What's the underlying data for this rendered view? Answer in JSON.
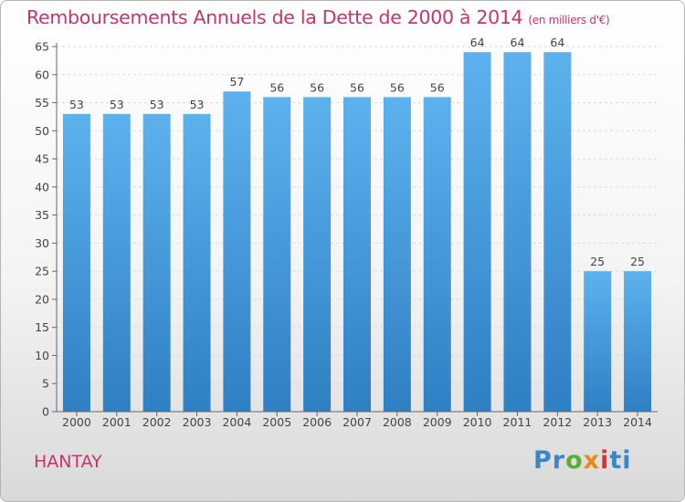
{
  "chart_data": {
    "type": "bar",
    "title": "Remboursements Annuels de la Dette de 2000 à 2014",
    "unit_label": "(en milliers d'€)",
    "categories": [
      "2000",
      "2001",
      "2002",
      "2003",
      "2004",
      "2005",
      "2006",
      "2007",
      "2008",
      "2009",
      "2010",
      "2011",
      "2012",
      "2013",
      "2014"
    ],
    "values": [
      53,
      53,
      53,
      53,
      57,
      56,
      56,
      56,
      56,
      56,
      64,
      64,
      64,
      25,
      25
    ],
    "ylim": [
      0,
      65
    ],
    "yticks": [
      0,
      5,
      10,
      15,
      20,
      25,
      30,
      35,
      40,
      45,
      50,
      55,
      60,
      65
    ],
    "grid": true,
    "bar_color": "#4a9fe0"
  },
  "place_name": "HANTAY",
  "logo": {
    "letters": [
      "Pr",
      "o",
      "x",
      "i",
      "ti"
    ]
  }
}
